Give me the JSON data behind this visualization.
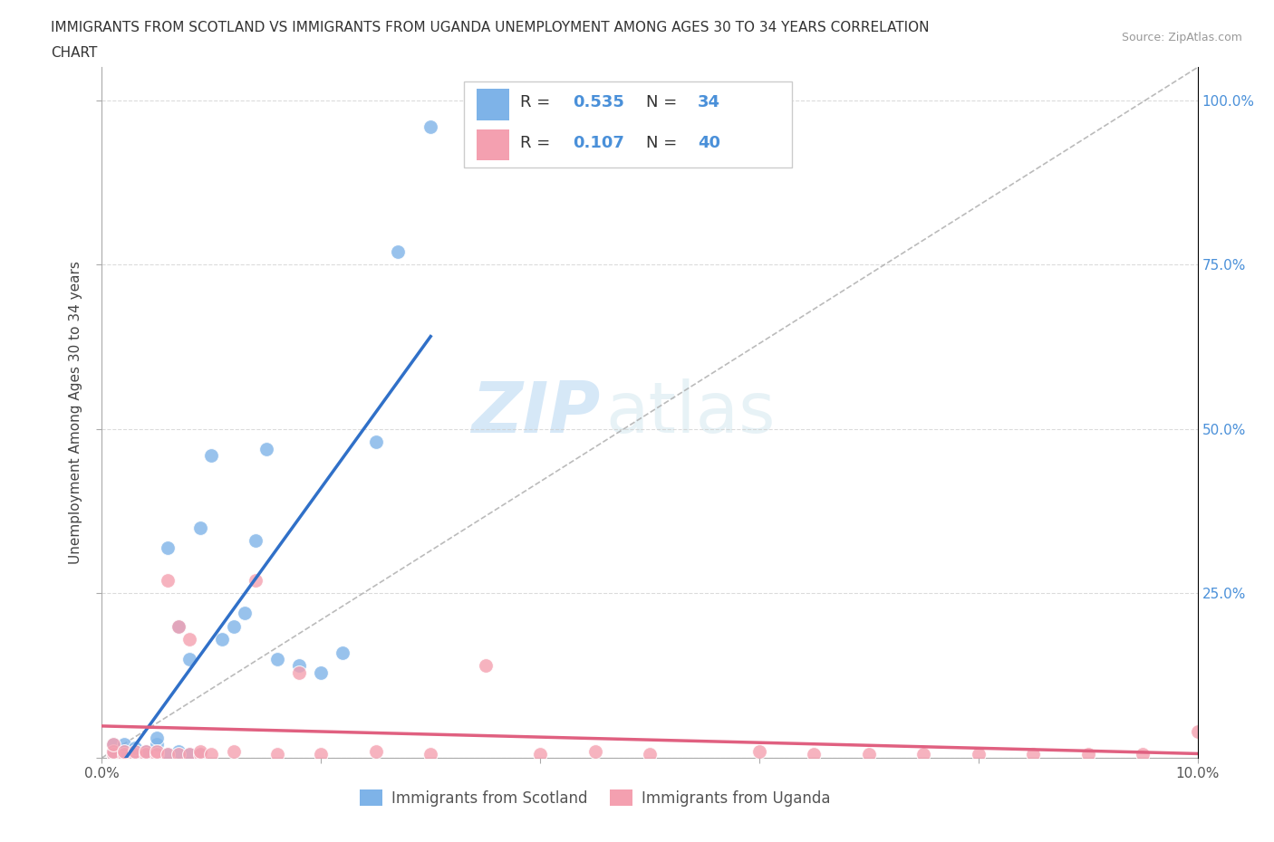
{
  "title_line1": "IMMIGRANTS FROM SCOTLAND VS IMMIGRANTS FROM UGANDA UNEMPLOYMENT AMONG AGES 30 TO 34 YEARS CORRELATION",
  "title_line2": "CHART",
  "source": "Source: ZipAtlas.com",
  "ylabel": "Unemployment Among Ages 30 to 34 years",
  "xlim": [
    0.0,
    0.1
  ],
  "ylim": [
    0.0,
    1.05
  ],
  "scotland_color": "#7eb3e8",
  "uganda_color": "#f4a0b0",
  "scotland_R": 0.535,
  "scotland_N": 34,
  "uganda_R": 0.107,
  "uganda_N": 40,
  "legend_label_scotland": "Immigrants from Scotland",
  "legend_label_uganda": "Immigrants from Uganda",
  "scotland_x": [
    0.001,
    0.001,
    0.001,
    0.002,
    0.002,
    0.002,
    0.003,
    0.003,
    0.003,
    0.004,
    0.004,
    0.005,
    0.005,
    0.006,
    0.006,
    0.007,
    0.007,
    0.008,
    0.008,
    0.009,
    0.009,
    0.01,
    0.011,
    0.012,
    0.013,
    0.014,
    0.015,
    0.016,
    0.018,
    0.02,
    0.022,
    0.025,
    0.027,
    0.03
  ],
  "scotland_y": [
    0.005,
    0.01,
    0.02,
    0.005,
    0.01,
    0.02,
    0.005,
    0.01,
    0.015,
    0.005,
    0.01,
    0.02,
    0.03,
    0.005,
    0.32,
    0.01,
    0.2,
    0.005,
    0.15,
    0.005,
    0.35,
    0.46,
    0.18,
    0.2,
    0.22,
    0.33,
    0.47,
    0.15,
    0.14,
    0.13,
    0.16,
    0.48,
    0.77,
    0.96
  ],
  "uganda_x": [
    0.001,
    0.001,
    0.001,
    0.002,
    0.002,
    0.003,
    0.003,
    0.004,
    0.004,
    0.005,
    0.005,
    0.006,
    0.006,
    0.007,
    0.007,
    0.008,
    0.008,
    0.009,
    0.009,
    0.01,
    0.012,
    0.014,
    0.016,
    0.018,
    0.02,
    0.025,
    0.03,
    0.035,
    0.04,
    0.045,
    0.05,
    0.06,
    0.065,
    0.07,
    0.075,
    0.08,
    0.085,
    0.09,
    0.095,
    0.1
  ],
  "uganda_y": [
    0.005,
    0.01,
    0.02,
    0.005,
    0.01,
    0.005,
    0.01,
    0.005,
    0.01,
    0.005,
    0.01,
    0.005,
    0.27,
    0.005,
    0.2,
    0.005,
    0.18,
    0.005,
    0.01,
    0.005,
    0.01,
    0.27,
    0.005,
    0.13,
    0.005,
    0.01,
    0.005,
    0.14,
    0.005,
    0.01,
    0.005,
    0.01,
    0.005,
    0.005,
    0.005,
    0.005,
    0.005,
    0.005,
    0.005,
    0.04
  ],
  "background_color": "#ffffff",
  "grid_color": "#cccccc",
  "watermark_zip": "ZIP",
  "watermark_atlas": "atlas",
  "diagonal_line_color": "#aaaaaa",
  "scotland_line_color": "#3070c8",
  "uganda_line_color": "#e06080",
  "right_axis_color": "#4a90d9"
}
